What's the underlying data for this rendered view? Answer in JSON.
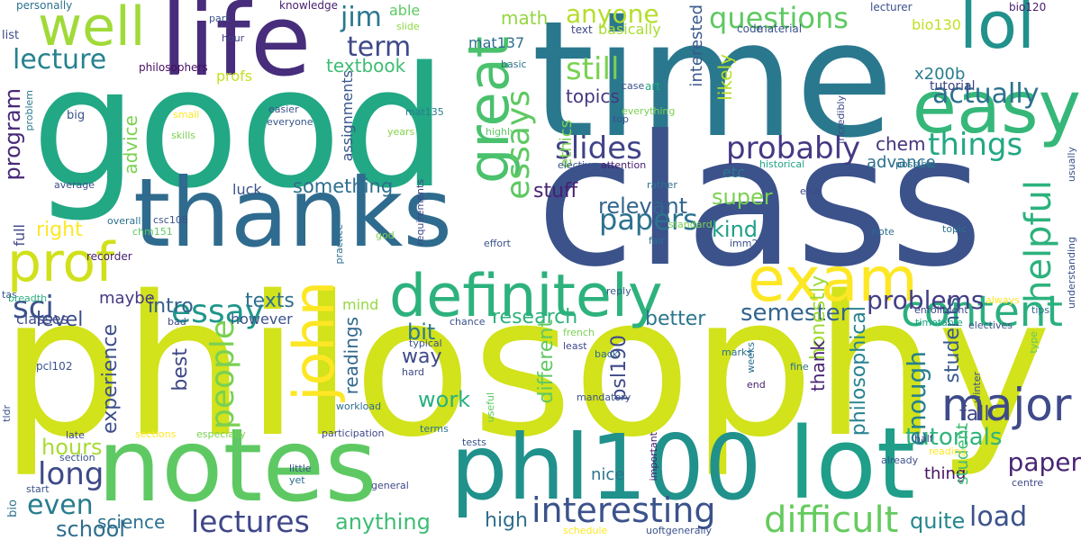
{
  "words": [
    {
      "text": "philosophy",
      "color": "#d2e21b"
    },
    {
      "text": "good",
      "color": "#22a884"
    },
    {
      "text": "time",
      "color": "#2a788e"
    },
    {
      "text": "class",
      "color": "#3b528b"
    },
    {
      "text": "thanks",
      "color": "#2f6b8e"
    },
    {
      "text": "notes",
      "color": "#5ec962"
    },
    {
      "text": "phl100",
      "color": "#21918c"
    },
    {
      "text": "life",
      "color": "#472d7b"
    },
    {
      "text": "lot",
      "color": "#1f9e89"
    },
    {
      "text": "easy",
      "color": "#35b779"
    },
    {
      "text": "exam",
      "color": "#fde725"
    },
    {
      "text": "definitely",
      "color": "#2db27d"
    },
    {
      "text": "lol",
      "color": "#21918c"
    },
    {
      "text": "well",
      "color": "#a0da39"
    },
    {
      "text": "great",
      "color": "#4ac16d"
    },
    {
      "text": "john",
      "color": "#fde725"
    },
    {
      "text": "prof",
      "color": "#d0e11c"
    },
    {
      "text": "content",
      "color": "#2ab07f"
    },
    {
      "text": "major",
      "color": "#3e4a89"
    },
    {
      "text": "interesting",
      "color": "#3b528b"
    },
    {
      "text": "difficult",
      "color": "#65cb5e"
    },
    {
      "text": "lectures",
      "color": "#3f4788"
    },
    {
      "text": "essay",
      "color": "#1f968b"
    },
    {
      "text": "slides",
      "color": "#414487"
    },
    {
      "text": "probably",
      "color": "#443983"
    },
    {
      "text": "things",
      "color": "#22a884"
    },
    {
      "text": "actually",
      "color": "#2c728e"
    },
    {
      "text": "questions",
      "color": "#5ec962"
    },
    {
      "text": "lecture",
      "color": "#26828e"
    },
    {
      "text": "anyone",
      "color": "#b5de2b"
    },
    {
      "text": "still",
      "color": "#7ad151"
    },
    {
      "text": "term",
      "color": "#3e4989"
    },
    {
      "text": "jim",
      "color": "#2a788e"
    },
    {
      "text": "essays",
      "color": "#5ec962"
    },
    {
      "text": "papers",
      "color": "#2c728e"
    },
    {
      "text": "people",
      "color": "#7ad151"
    },
    {
      "text": "helpful",
      "color": "#2db27d"
    },
    {
      "text": "problems",
      "color": "#433e85"
    },
    {
      "text": "sci",
      "color": "#3b528b"
    },
    {
      "text": "long",
      "color": "#3e4a89"
    },
    {
      "text": "even",
      "color": "#287c8e"
    },
    {
      "text": "anything",
      "color": "#3dbc74"
    },
    {
      "text": "science",
      "color": "#2c728e"
    },
    {
      "text": "load",
      "color": "#3b528b"
    },
    {
      "text": "work",
      "color": "#2ab07f"
    },
    {
      "text": "semester",
      "color": "#32648e"
    },
    {
      "text": "research",
      "color": "#2db27d"
    },
    {
      "text": "relevant",
      "color": "#32658e"
    },
    {
      "text": "tutorials",
      "color": "#2fb47c"
    },
    {
      "text": "paper",
      "color": "#482576"
    },
    {
      "text": "enough",
      "color": "#277f8e"
    },
    {
      "text": "philosophical",
      "color": "#25838e"
    },
    {
      "text": "students",
      "color": "#38598c"
    },
    {
      "text": "program",
      "color": "#482878"
    },
    {
      "text": "experience",
      "color": "#3d4e8a"
    },
    {
      "text": "school",
      "color": "#2e6e8e"
    },
    {
      "text": "hours",
      "color": "#a8db34"
    },
    {
      "text": "high",
      "color": "#2e6f8e"
    },
    {
      "text": "quite",
      "color": "#24878e"
    },
    {
      "text": "fall",
      "color": "#404688"
    },
    {
      "text": "super",
      "color": "#7ad151"
    },
    {
      "text": "kind",
      "color": "#1fa088"
    },
    {
      "text": "better",
      "color": "#2b758e"
    },
    {
      "text": "bit",
      "color": "#2a778e"
    },
    {
      "text": "texts",
      "color": "#2d718e"
    },
    {
      "text": "honestly",
      "color": "#a0da39"
    },
    {
      "text": "stuff",
      "color": "#482071"
    },
    {
      "text": "something",
      "color": "#2e6e8e"
    },
    {
      "text": "level",
      "color": "#3c4f8a"
    },
    {
      "text": "right",
      "color": "#fde725"
    },
    {
      "text": "intro",
      "color": "#35608d"
    },
    {
      "text": "maybe",
      "color": "#443983"
    },
    {
      "text": "math",
      "color": "#93d741"
    },
    {
      "text": "textbook",
      "color": "#3fbc73"
    },
    {
      "text": "topics",
      "color": "#453781"
    },
    {
      "text": "chem",
      "color": "#46327e"
    },
    {
      "text": "advance",
      "color": "#2c718e"
    },
    {
      "text": "advice",
      "color": "#7ad151"
    },
    {
      "text": "thank",
      "color": "#482173"
    },
    {
      "text": "readings",
      "color": "#31688e"
    },
    {
      "text": "way",
      "color": "#3e4a89"
    },
    {
      "text": "different",
      "color": "#5ec962"
    },
    {
      "text": "psl190",
      "color": "#3e4989"
    },
    {
      "text": "best",
      "color": "#3f4788"
    },
    {
      "text": "mat137",
      "color": "#2e6e8e"
    },
    {
      "text": "bio130",
      "color": "#c2df23"
    },
    {
      "text": "x200b",
      "color": "#287d8e"
    },
    {
      "text": "tutorial",
      "color": "#414487"
    },
    {
      "text": "interested",
      "color": "#38588c"
    },
    {
      "text": "likely",
      "color": "#b8de29"
    },
    {
      "text": "luck",
      "color": "#3b528b"
    },
    {
      "text": "etc",
      "color": "#2a788e"
    },
    {
      "text": "assignments",
      "color": "#39568c"
    },
    {
      "text": "profs",
      "color": "#c5e021"
    },
    {
      "text": "basically",
      "color": "#aadc32"
    },
    {
      "text": "however",
      "color": "#3b528b"
    },
    {
      "text": "thing",
      "color": "#471164"
    },
    {
      "text": "full",
      "color": "#404688"
    },
    {
      "text": "mind",
      "color": "#95d840"
    },
    {
      "text": "student",
      "color": "#3fbc73"
    },
    {
      "text": "nice",
      "color": "#2c728e"
    },
    {
      "text": "classes",
      "color": "#3e4989"
    },
    {
      "text": "ethics",
      "color": "#7ad151"
    },
    {
      "text": "able",
      "color": "#5ec962"
    },
    {
      "text": "knowledge",
      "color": "#482071"
    },
    {
      "text": "personally",
      "color": "#2c728e"
    },
    {
      "text": "part",
      "color": "#3b528b"
    },
    {
      "text": "list",
      "color": "#3e4a89"
    },
    {
      "text": "hour",
      "color": "#414487"
    },
    {
      "text": "philosophers",
      "color": "#470e61"
    },
    {
      "text": "slide",
      "color": "#8fd744"
    },
    {
      "text": "text",
      "color": "#3e4989"
    },
    {
      "text": "code",
      "color": "#39558c"
    },
    {
      "text": "material",
      "color": "#3b528b"
    },
    {
      "text": "lecturer",
      "color": "#3b528b"
    },
    {
      "text": "bio120",
      "color": "#481c6e"
    },
    {
      "text": "basic",
      "color": "#2c728e"
    },
    {
      "text": "case",
      "color": "#3b528b"
    },
    {
      "text": "art",
      "color": "#22a884"
    },
    {
      "text": "everything",
      "color": "#7ad151"
    },
    {
      "text": "top",
      "color": "#3b528b"
    },
    {
      "text": "incredibly",
      "color": "#3e4989"
    },
    {
      "text": "big",
      "color": "#3b528b"
    },
    {
      "text": "small",
      "color": "#fde725"
    },
    {
      "text": "easier",
      "color": "#3b528b"
    },
    {
      "text": "everyone",
      "color": "#39568c"
    },
    {
      "text": "mat135",
      "color": "#287d8e"
    },
    {
      "text": "years",
      "color": "#86d549"
    },
    {
      "text": "skills",
      "color": "#7ad151"
    },
    {
      "text": "highly",
      "color": "#5ec962"
    },
    {
      "text": "problem",
      "color": "#2a788e"
    },
    {
      "text": "average",
      "color": "#3b528b"
    },
    {
      "text": "rather",
      "color": "#2e6e8e"
    },
    {
      "text": "elective",
      "color": "#3b528b"
    },
    {
      "text": "attention",
      "color": "#482071"
    },
    {
      "text": "historical",
      "color": "#20a386"
    },
    {
      "text": "possible",
      "color": "#2c728e"
    },
    {
      "text": "usually",
      "color": "#3b528b"
    },
    {
      "text": "else",
      "color": "#3e4a89"
    },
    {
      "text": "overall",
      "color": "#2c728e"
    },
    {
      "text": "csc108",
      "color": "#3b528b"
    },
    {
      "text": "chm151",
      "color": "#5ec962"
    },
    {
      "text": "practice",
      "color": "#2e6e8e"
    },
    {
      "text": "standard",
      "color": "#7ad151"
    },
    {
      "text": "imm250",
      "color": "#3b528b"
    },
    {
      "text": "requirements",
      "color": "#3e4989"
    },
    {
      "text": "god",
      "color": "#7ad151"
    },
    {
      "text": "effort",
      "color": "#3b528b"
    },
    {
      "text": "fair",
      "color": "#2c728e"
    },
    {
      "text": "note",
      "color": "#2e6e8e"
    },
    {
      "text": "topic",
      "color": "#2c728e"
    },
    {
      "text": "understanding",
      "color": "#3b528b"
    },
    {
      "text": "recorder",
      "color": "#482071"
    },
    {
      "text": "tas",
      "color": "#3b528b"
    },
    {
      "text": "breadth",
      "color": "#2ab07f"
    },
    {
      "text": "reply",
      "color": "#38588c"
    },
    {
      "text": "always",
      "color": "#fde725"
    },
    {
      "text": "enrollment",
      "color": "#3e4989"
    },
    {
      "text": "tips",
      "color": "#2e6e8e"
    },
    {
      "text": "timetable",
      "color": "#20a386"
    },
    {
      "text": "electives",
      "color": "#3b528b"
    },
    {
      "text": "type",
      "color": "#5ec962"
    },
    {
      "text": "bad",
      "color": "#3e4989"
    },
    {
      "text": "chance",
      "color": "#3b528b"
    },
    {
      "text": "french",
      "color": "#7ad151"
    },
    {
      "text": "marks",
      "color": "#2c728e"
    },
    {
      "text": "least",
      "color": "#3e4989"
    },
    {
      "text": "weeks",
      "color": "#2c728e"
    },
    {
      "text": "winter",
      "color": "#3b528b"
    },
    {
      "text": "typical",
      "color": "#3b528b"
    },
    {
      "text": "back",
      "color": "#2e6e8e"
    },
    {
      "text": "fine",
      "color": "#2c728e"
    },
    {
      "text": "pcl102",
      "color": "#3b528b"
    },
    {
      "text": "hard",
      "color": "#3e4989"
    },
    {
      "text": "useful",
      "color": "#5ec962"
    },
    {
      "text": "end",
      "color": "#482071"
    },
    {
      "text": "mandatory",
      "color": "#3b528b"
    },
    {
      "text": "tldr",
      "color": "#3b528b"
    },
    {
      "text": "workload",
      "color": "#2e6e8e"
    },
    {
      "text": "late",
      "color": "#3e4989"
    },
    {
      "text": "section",
      "color": "#3b528b"
    },
    {
      "text": "sections",
      "color": "#fde725"
    },
    {
      "text": "especially",
      "color": "#7ad151"
    },
    {
      "text": "participation",
      "color": "#3e4989"
    },
    {
      "text": "terms",
      "color": "#2c728e"
    },
    {
      "text": "tests",
      "color": "#3b528b"
    },
    {
      "text": "reading",
      "color": "#fde725"
    },
    {
      "text": "half",
      "color": "#3e4989"
    },
    {
      "text": "already",
      "color": "#3b528b"
    },
    {
      "text": "centre",
      "color": "#3e4989"
    },
    {
      "text": "bio",
      "color": "#2c728e"
    },
    {
      "text": "start",
      "color": "#3b528b"
    },
    {
      "text": "little",
      "color": "#3b528b"
    },
    {
      "text": "yet",
      "color": "#2e6e8e"
    },
    {
      "text": "general",
      "color": "#3e4989"
    },
    {
      "text": "important",
      "color": "#482071"
    },
    {
      "text": "schedule",
      "color": "#fde725"
    },
    {
      "text": "uoftgenerally",
      "color": "#3b528b"
    }
  ]
}
